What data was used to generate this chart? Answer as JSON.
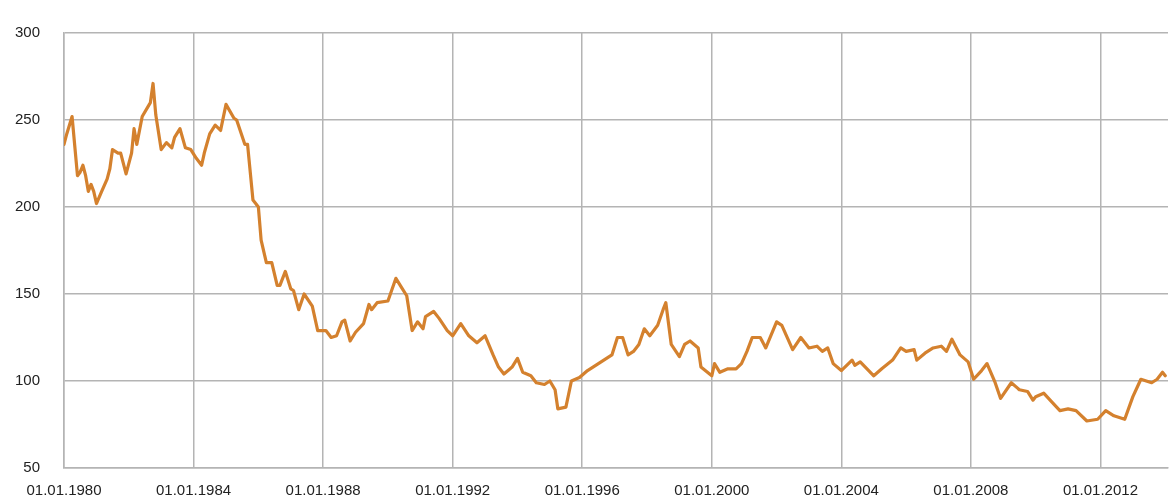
{
  "chart_data": {
    "type": "line",
    "grid": true,
    "legend": false,
    "marker": "none",
    "line_style": "solid",
    "xlim": [
      "1980-01",
      "2014-02"
    ],
    "xticks": [
      {
        "value": "1980-01-01",
        "label": "01.01.1980"
      },
      {
        "value": "1984-01-01",
        "label": "01.01.1984"
      },
      {
        "value": "1988-01-01",
        "label": "01.01.1988"
      },
      {
        "value": "1992-01-01",
        "label": "01.01.1992"
      },
      {
        "value": "1996-01-01",
        "label": "01.01.1996"
      },
      {
        "value": "2000-01-01",
        "label": "01.01.2000"
      },
      {
        "value": "2004-01-01",
        "label": "01.01.2004"
      },
      {
        "value": "2008-01-01",
        "label": "01.01.2008"
      },
      {
        "value": "2012-01-01",
        "label": "01.01.2012"
      }
    ],
    "ylim": [
      50,
      300
    ],
    "yticks": [
      50,
      100,
      150,
      200,
      250,
      300
    ],
    "x": [
      "1980-01",
      "1980-02",
      "1980-04",
      "1980-06",
      "1980-07",
      "1980-08",
      "1980-09",
      "1980-10",
      "1980-11",
      "1980-12",
      "1981-01",
      "1981-03",
      "1981-05",
      "1981-06",
      "1981-07",
      "1981-09",
      "1981-10",
      "1981-12",
      "1982-02",
      "1982-03",
      "1982-04",
      "1982-06",
      "1982-09",
      "1982-10",
      "1982-11",
      "1983-01",
      "1983-03",
      "1983-05",
      "1983-06",
      "1983-08",
      "1983-10",
      "1983-12",
      "1984-02",
      "1984-04",
      "1984-05",
      "1984-07",
      "1984-09",
      "1984-11",
      "1985-01",
      "1985-04",
      "1985-05",
      "1985-08",
      "1985-09",
      "1985-11",
      "1986-01",
      "1986-02",
      "1986-04",
      "1986-06",
      "1986-08",
      "1986-09",
      "1986-11",
      "1987-01",
      "1987-02",
      "1987-04",
      "1987-06",
      "1987-09",
      "1987-11",
      "1988-02",
      "1988-04",
      "1988-06",
      "1988-08",
      "1988-09",
      "1988-11",
      "1989-01",
      "1989-04",
      "1989-06",
      "1989-07",
      "1989-09",
      "1990-01",
      "1990-04",
      "1990-06",
      "1990-08",
      "1990-10",
      "1990-12",
      "1991-02",
      "1991-03",
      "1991-06",
      "1991-08",
      "1991-11",
      "1992-01",
      "1992-04",
      "1992-07",
      "1992-10",
      "1993-01",
      "1993-04",
      "1993-06",
      "1993-08",
      "1993-11",
      "1994-01",
      "1994-03",
      "1994-06",
      "1994-08",
      "1994-11",
      "1995-01",
      "1995-03",
      "1995-04",
      "1995-07",
      "1995-09",
      "1995-12",
      "1996-03",
      "1996-06",
      "1996-10",
      "1996-12",
      "1997-02",
      "1997-04",
      "1997-06",
      "1997-08",
      "1997-10",
      "1997-12",
      "1998-02",
      "1998-05",
      "1998-07",
      "1998-08",
      "1998-10",
      "1999-01",
      "1999-03",
      "1999-05",
      "1999-08",
      "1999-09",
      "2000-01",
      "2000-02",
      "2000-04",
      "2000-07",
      "2000-10",
      "2000-12",
      "2001-02",
      "2001-04",
      "2001-07",
      "2001-09",
      "2002-01",
      "2002-03",
      "2002-07",
      "2002-10",
      "2003-01",
      "2003-04",
      "2003-06",
      "2003-08",
      "2003-10",
      "2004-01",
      "2004-05",
      "2004-06",
      "2004-08",
      "2005-01",
      "2005-04",
      "2005-08",
      "2005-11",
      "2006-01",
      "2006-04",
      "2006-05",
      "2006-08",
      "2006-11",
      "2007-02",
      "2007-04",
      "2007-06",
      "2007-09",
      "2007-12",
      "2008-02",
      "2008-05",
      "2008-07",
      "2008-10",
      "2008-12",
      "2009-04",
      "2009-07",
      "2009-10",
      "2009-12",
      "2010-01",
      "2010-04",
      "2010-07",
      "2010-10",
      "2011-01",
      "2011-04",
      "2011-08",
      "2011-12",
      "2012-03",
      "2012-06",
      "2012-10",
      "2013-01",
      "2013-04",
      "2013-06",
      "2013-08",
      "2013-10",
      "2013-12",
      "2014-01"
    ],
    "series": [
      {
        "color": "#d4812e",
        "values": [
          236,
          242,
          252,
          218,
          220,
          224,
          218,
          209,
          213,
          209,
          202,
          209,
          216,
          222,
          233,
          231,
          231,
          219,
          231,
          245,
          236,
          252,
          260,
          271,
          253,
          233,
          237,
          234,
          240,
          245,
          234,
          233,
          228,
          224,
          231,
          242,
          247,
          244,
          259,
          251,
          250,
          236,
          236,
          204,
          200,
          181,
          168,
          168,
          155,
          155,
          163,
          153,
          152,
          141,
          150,
          143,
          129,
          129,
          125,
          126,
          134,
          135,
          123,
          128,
          133,
          144,
          141,
          145,
          146,
          159,
          154,
          149,
          129,
          134,
          130,
          137,
          140,
          136,
          129,
          126,
          133,
          126,
          122,
          126,
          115,
          108,
          104,
          108,
          113,
          105,
          103,
          99,
          98,
          100,
          95,
          84,
          85,
          100,
          102,
          106,
          109,
          113,
          115,
          125,
          125,
          115,
          117,
          121,
          130,
          126,
          132,
          141,
          145,
          121,
          114,
          121,
          123,
          119,
          108,
          103,
          110,
          105,
          107,
          107,
          110,
          117,
          125,
          125,
          119,
          134,
          132,
          118,
          125,
          119,
          120,
          117,
          119,
          110,
          106,
          112,
          109,
          111,
          103,
          107,
          112,
          119,
          117,
          118,
          112,
          116,
          119,
          120,
          117,
          124,
          115,
          111,
          101,
          106,
          110,
          99,
          90,
          99,
          95,
          94,
          89,
          91,
          93,
          88,
          83,
          84,
          83,
          77,
          78,
          83,
          80,
          78,
          91,
          101,
          100,
          99,
          101,
          105,
          103
        ]
      }
    ]
  }
}
